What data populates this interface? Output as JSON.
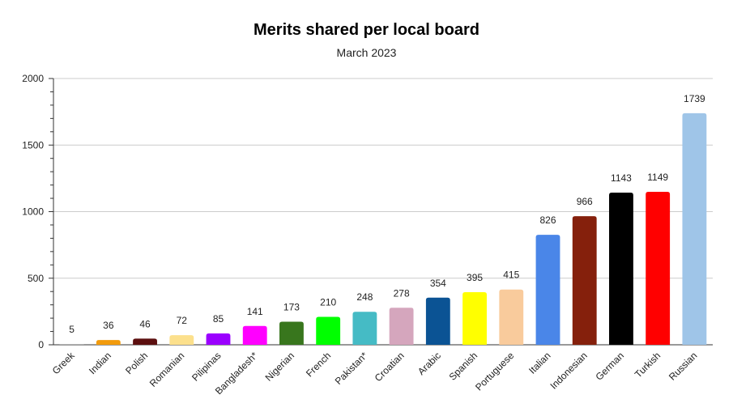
{
  "chart_data": {
    "type": "bar",
    "title": "Merits shared per local board",
    "subtitle": "March 2023",
    "xlabel": "",
    "ylabel": "",
    "ylim": [
      0,
      2000
    ],
    "yticks": [
      0,
      500,
      1000,
      1500,
      2000
    ],
    "grid": true,
    "legend": "none",
    "categories": [
      "Greek",
      "Indian",
      "Polish",
      "Romanian",
      "Pilipinas",
      "Bangladesh*",
      "Nigerian",
      "French",
      "Pakistan*",
      "Croatian",
      "Arabic",
      "Spanish",
      "Portuguese",
      "Italian",
      "Indonesian",
      "German",
      "Turkish",
      "Russian"
    ],
    "values": [
      5,
      36,
      46,
      72,
      85,
      141,
      173,
      210,
      248,
      278,
      354,
      395,
      415,
      826,
      966,
      1143,
      1149,
      1739
    ],
    "colors": [
      "#a6a6a6",
      "#f29b0c",
      "#5c0f0f",
      "#fce08c",
      "#9b00ff",
      "#ff00ff",
      "#38761d",
      "#00ff00",
      "#45bbc5",
      "#d5a6bd",
      "#0b5394",
      "#ffff00",
      "#f9cb9c",
      "#4a86e8",
      "#85200c",
      "#000000",
      "#ff0000",
      "#9fc5e8"
    ]
  }
}
